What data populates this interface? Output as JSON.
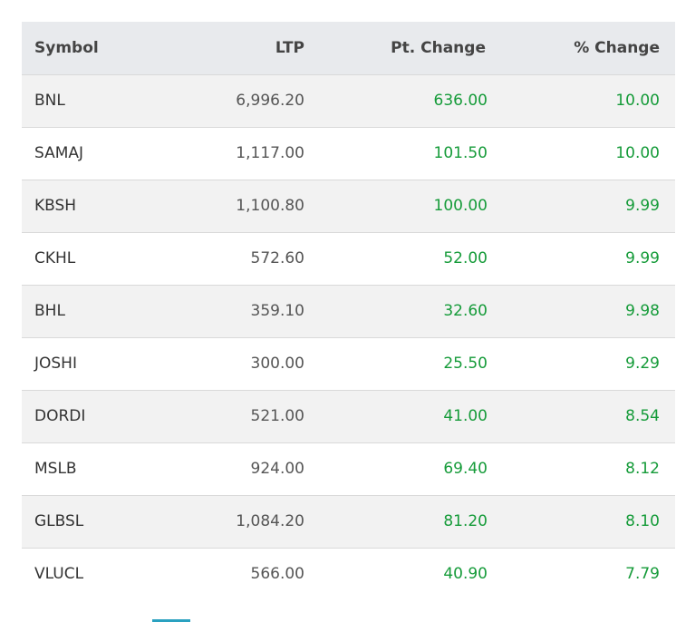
{
  "table": {
    "headers": {
      "symbol": "Symbol",
      "ltp": "LTP",
      "pt_change": "Pt. Change",
      "pct_change": "% Change"
    },
    "rows": [
      {
        "symbol": "BNL",
        "ltp": "6,996.20",
        "pt_change": "636.00",
        "pct_change": "10.00"
      },
      {
        "symbol": "SAMAJ",
        "ltp": "1,117.00",
        "pt_change": "101.50",
        "pct_change": "10.00"
      },
      {
        "symbol": "KBSH",
        "ltp": "1,100.80",
        "pt_change": "100.00",
        "pct_change": "9.99"
      },
      {
        "symbol": "CKHL",
        "ltp": "572.60",
        "pt_change": "52.00",
        "pct_change": "9.99"
      },
      {
        "symbol": "BHL",
        "ltp": "359.10",
        "pt_change": "32.60",
        "pct_change": "9.98"
      },
      {
        "symbol": "JOSHI",
        "ltp": "300.00",
        "pt_change": "25.50",
        "pct_change": "9.29"
      },
      {
        "symbol": "DORDI",
        "ltp": "521.00",
        "pt_change": "41.00",
        "pct_change": "8.54"
      },
      {
        "symbol": "MSLB",
        "ltp": "924.00",
        "pt_change": "69.40",
        "pct_change": "8.12"
      },
      {
        "symbol": "GLBSL",
        "ltp": "1,084.20",
        "pt_change": "81.20",
        "pct_change": "8.10"
      },
      {
        "symbol": "VLUCL",
        "ltp": "566.00",
        "pt_change": "40.90",
        "pct_change": "7.79"
      }
    ]
  },
  "colors": {
    "gain": "#159b39",
    "header_bg": "#e8eaed",
    "stripe_bg": "#f2f2f2",
    "accent": "#2aa1c0"
  }
}
